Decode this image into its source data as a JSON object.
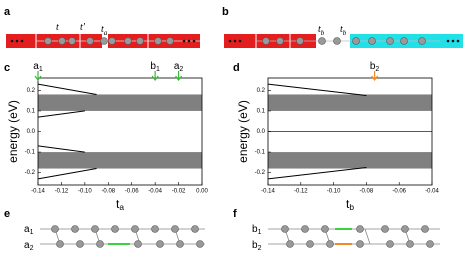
{
  "panel_labels": [
    "a",
    "b",
    "c",
    "d",
    "e",
    "f"
  ],
  "diagram_a": {
    "labels": [
      {
        "text": "t"
      },
      {
        "text": "t′"
      },
      {
        "text": "t",
        "sub": "a"
      }
    ]
  },
  "diagram_b": {
    "labels": [
      {
        "text": "t",
        "sub": "b"
      },
      {
        "text": "t",
        "sub": "b"
      }
    ]
  },
  "diagram_e": {
    "labels": [
      {
        "text": "a",
        "sub": "1"
      },
      {
        "text": "a",
        "sub": "2"
      }
    ]
  },
  "diagram_f": {
    "labels": [
      {
        "text": "b",
        "sub": "1"
      },
      {
        "text": "b",
        "sub": "2"
      }
    ]
  },
  "chart_data": [
    {
      "type": "line",
      "ylabel": "energy (eV)",
      "xlabel": {
        "text": "t",
        "sub": "a"
      },
      "xlim": [
        -0.14,
        0
      ],
      "xticks": [
        -0.14,
        -0.12,
        {
          "value": -0.1,
          "label": "-0.10"
        },
        -0.08,
        -0.06,
        -0.04,
        -0.02,
        {
          "value": 0,
          "label": "0.00"
        }
      ],
      "ylim": [
        -0.26,
        0.26
      ],
      "yticks": [
        -0.2,
        -0.1,
        {
          "value": 0,
          "label": "0.0"
        },
        0.1,
        0.2
      ],
      "band_color": "#808080",
      "bands": [
        {
          "low": 0.1,
          "high": 0.18
        },
        {
          "low": -0.18,
          "high": -0.1
        }
      ],
      "series": [
        {
          "color": "#000000",
          "x": [
            -0.14,
            -0.09
          ],
          "values": [
            0.23,
            0.18
          ]
        },
        {
          "color": "#000000",
          "x": [
            -0.14,
            -0.1
          ],
          "values": [
            0.07,
            0.1
          ]
        },
        {
          "color": "#000000",
          "x": [
            -0.14,
            -0.1
          ],
          "values": [
            -0.07,
            -0.1
          ]
        },
        {
          "color": "#000000",
          "x": [
            -0.14,
            -0.09
          ],
          "values": [
            -0.23,
            -0.18
          ]
        }
      ],
      "annotations": [
        {
          "text": "a",
          "sub": "1",
          "x": -0.14,
          "color": "#3cb83c"
        },
        {
          "text": "b",
          "sub": "1",
          "x": -0.04,
          "color": "#3cb83c"
        },
        {
          "text": "a",
          "sub": "2",
          "x": -0.02,
          "color": "#3cb83c"
        }
      ]
    },
    {
      "type": "line",
      "ylabel": "energy (eV)",
      "xlabel": {
        "text": "t",
        "sub": "b"
      },
      "xlim": [
        -0.14,
        -0.04
      ],
      "xticks": [
        -0.14,
        -0.12,
        {
          "value": -0.1,
          "label": "-0.10"
        },
        -0.08,
        -0.06,
        -0.04
      ],
      "ylim": [
        -0.26,
        0.26
      ],
      "yticks": [
        -0.2,
        -0.1,
        {
          "value": 0,
          "label": "0.0"
        },
        0.1,
        0.2
      ],
      "band_color": "#808080",
      "bands": [
        {
          "low": 0.1,
          "high": 0.18
        },
        {
          "low": -0.18,
          "high": -0.1
        }
      ],
      "series": [
        {
          "color": "#e02020",
          "x": [
            -0.14,
            -0.04
          ],
          "values": [
            0,
            0
          ]
        },
        {
          "color": "#000000",
          "x": [
            -0.14,
            -0.08
          ],
          "values": [
            0.23,
            0.175
          ]
        },
        {
          "color": "#000000",
          "x": [
            -0.14,
            -0.08
          ],
          "values": [
            -0.23,
            -0.175
          ]
        }
      ],
      "annotations": [
        {
          "text": "b",
          "sub": "2",
          "x": -0.075,
          "color": "#f08a24"
        }
      ]
    }
  ]
}
